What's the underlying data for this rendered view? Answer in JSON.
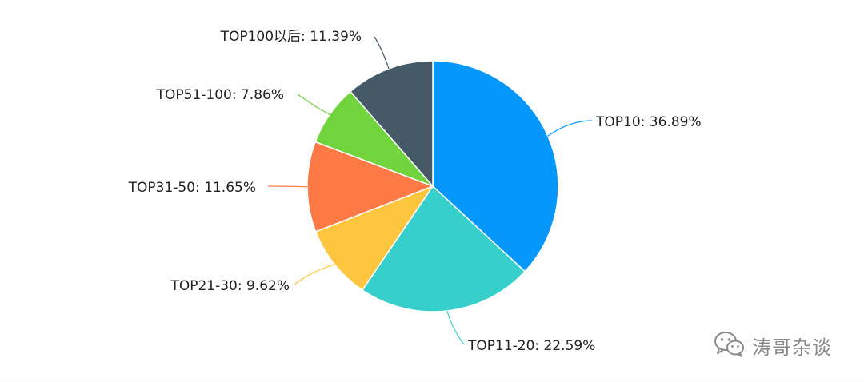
{
  "chart_data": {
    "type": "pie",
    "slices": [
      {
        "label": "TOP10",
        "value": 36.89,
        "display": "TOP10: 36.89%",
        "color": "#0598fa"
      },
      {
        "label": "TOP11-20",
        "value": 22.59,
        "display": "TOP11-20: 22.59%",
        "color": "#36cfcc"
      },
      {
        "label": "TOP21-30",
        "value": 9.62,
        "display": "TOP21-30: 9.62%",
        "color": "#fec53e"
      },
      {
        "label": "TOP31-50",
        "value": 11.65,
        "display": "TOP31-50: 11.65%",
        "color": "#fd7a46"
      },
      {
        "label": "TOP51-100",
        "value": 7.86,
        "display": "TOP51-100: 7.86%",
        "color": "#71d43d"
      },
      {
        "label": "TOP100以后",
        "value": 11.39,
        "display": "TOP100以后: 11.39%",
        "color": "#455966"
      }
    ]
  },
  "watermark": {
    "text": "涛哥杂谈",
    "icon": "wechat-icon",
    "color": "#8a8a8a"
  }
}
